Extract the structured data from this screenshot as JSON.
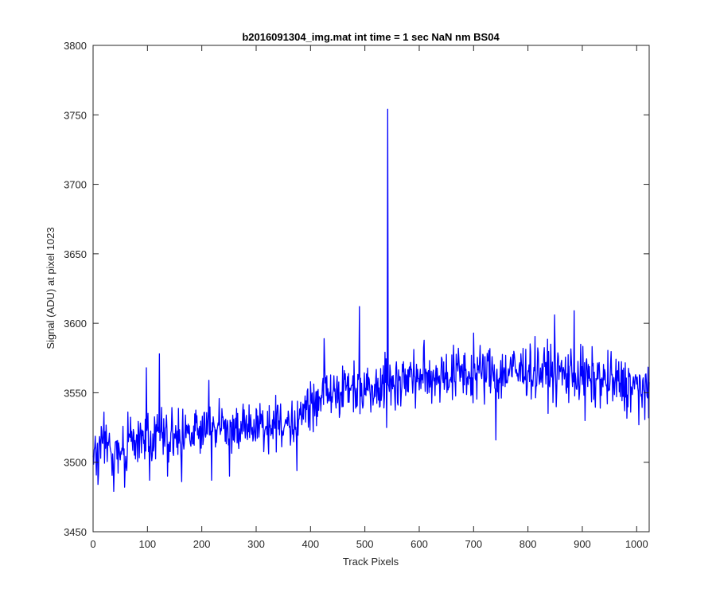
{
  "chart_data": {
    "type": "line",
    "title": "b2016091304_img.mat int time = 1 sec  NaN nm BS04",
    "xlabel": "Track Pixels",
    "ylabel": "Signal (ADU) at pixel 1023",
    "xlim": [
      0,
      1023
    ],
    "ylim": [
      3450,
      3800
    ],
    "xticks": [
      0,
      100,
      200,
      300,
      400,
      500,
      600,
      700,
      800,
      900,
      1000
    ],
    "yticks": [
      3450,
      3500,
      3550,
      3600,
      3650,
      3700,
      3750,
      3800
    ],
    "grid": false,
    "legend": "none",
    "series_color": "#0000ff",
    "series": [
      {
        "x": [
          0,
          10,
          20,
          30,
          40,
          50,
          60,
          70,
          80,
          90,
          100,
          110,
          120,
          130,
          140,
          150,
          160,
          170,
          180,
          190,
          200,
          210,
          220,
          230,
          240,
          250,
          260,
          270,
          280,
          290,
          300,
          310,
          320,
          330,
          340,
          350,
          360,
          370,
          380,
          390,
          400,
          410,
          420,
          430,
          440,
          450,
          460,
          470,
          480,
          490,
          500,
          510,
          520,
          530,
          540,
          550,
          560,
          570,
          580,
          590,
          600,
          610,
          620,
          630,
          640,
          650,
          660,
          670,
          680,
          690,
          700,
          710,
          720,
          730,
          740,
          750,
          760,
          770,
          780,
          790,
          800,
          810,
          820,
          830,
          840,
          850,
          860,
          870,
          880,
          890,
          900,
          910,
          920,
          930,
          940,
          950,
          960,
          970,
          980,
          990,
          1000,
          1010,
          1020
        ],
        "values": [
          3505,
          3500,
          3520,
          3510,
          3503,
          3515,
          3508,
          3522,
          3510,
          3516,
          3520,
          3512,
          3525,
          3518,
          3514,
          3522,
          3519,
          3524,
          3520,
          3526,
          3520,
          3524,
          3527,
          3523,
          3525,
          3521,
          3526,
          3522,
          3524,
          3527,
          3523,
          3528,
          3525,
          3528,
          3530,
          3527,
          3532,
          3528,
          3533,
          3538,
          3542,
          3545,
          3548,
          3551,
          3549,
          3553,
          3550,
          3555,
          3552,
          3556,
          3553,
          3555,
          3558,
          3556,
          3557,
          3559,
          3557,
          3560,
          3562,
          3559,
          3563,
          3561,
          3560,
          3564,
          3562,
          3565,
          3561,
          3564,
          3566,
          3563,
          3562,
          3565,
          3563,
          3566,
          3564,
          3562,
          3565,
          3567,
          3564,
          3566,
          3568,
          3565,
          3567,
          3564,
          3566,
          3563,
          3565,
          3562,
          3564,
          3561,
          3563,
          3560,
          3558,
          3561,
          3557,
          3559,
          3556,
          3558,
          3554,
          3556,
          3553,
          3555,
          3552
        ]
      }
    ],
    "extreme_points": [
      {
        "x": 2,
        "y": 3509
      },
      {
        "x": 9,
        "y": 3484
      },
      {
        "x": 22,
        "y": 3522
      },
      {
        "x": 38,
        "y": 3479
      },
      {
        "x": 58,
        "y": 3482
      },
      {
        "x": 98,
        "y": 3568
      },
      {
        "x": 104,
        "y": 3487
      },
      {
        "x": 122,
        "y": 3578
      },
      {
        "x": 137,
        "y": 3490
      },
      {
        "x": 163,
        "y": 3486
      },
      {
        "x": 213,
        "y": 3559
      },
      {
        "x": 218,
        "y": 3487
      },
      {
        "x": 251,
        "y": 3490
      },
      {
        "x": 375,
        "y": 3494
      },
      {
        "x": 425,
        "y": 3589
      },
      {
        "x": 490,
        "y": 3612
      },
      {
        "x": 497,
        "y": 3541
      },
      {
        "x": 540,
        "y": 3525
      },
      {
        "x": 542,
        "y": 3754
      },
      {
        "x": 545,
        "y": 3551
      },
      {
        "x": 700,
        "y": 3593
      },
      {
        "x": 741,
        "y": 3516
      },
      {
        "x": 849,
        "y": 3606
      },
      {
        "x": 885,
        "y": 3609
      },
      {
        "x": 905,
        "y": 3530
      },
      {
        "x": 1004,
        "y": 3527
      },
      {
        "x": 1022,
        "y": 3532
      }
    ]
  }
}
